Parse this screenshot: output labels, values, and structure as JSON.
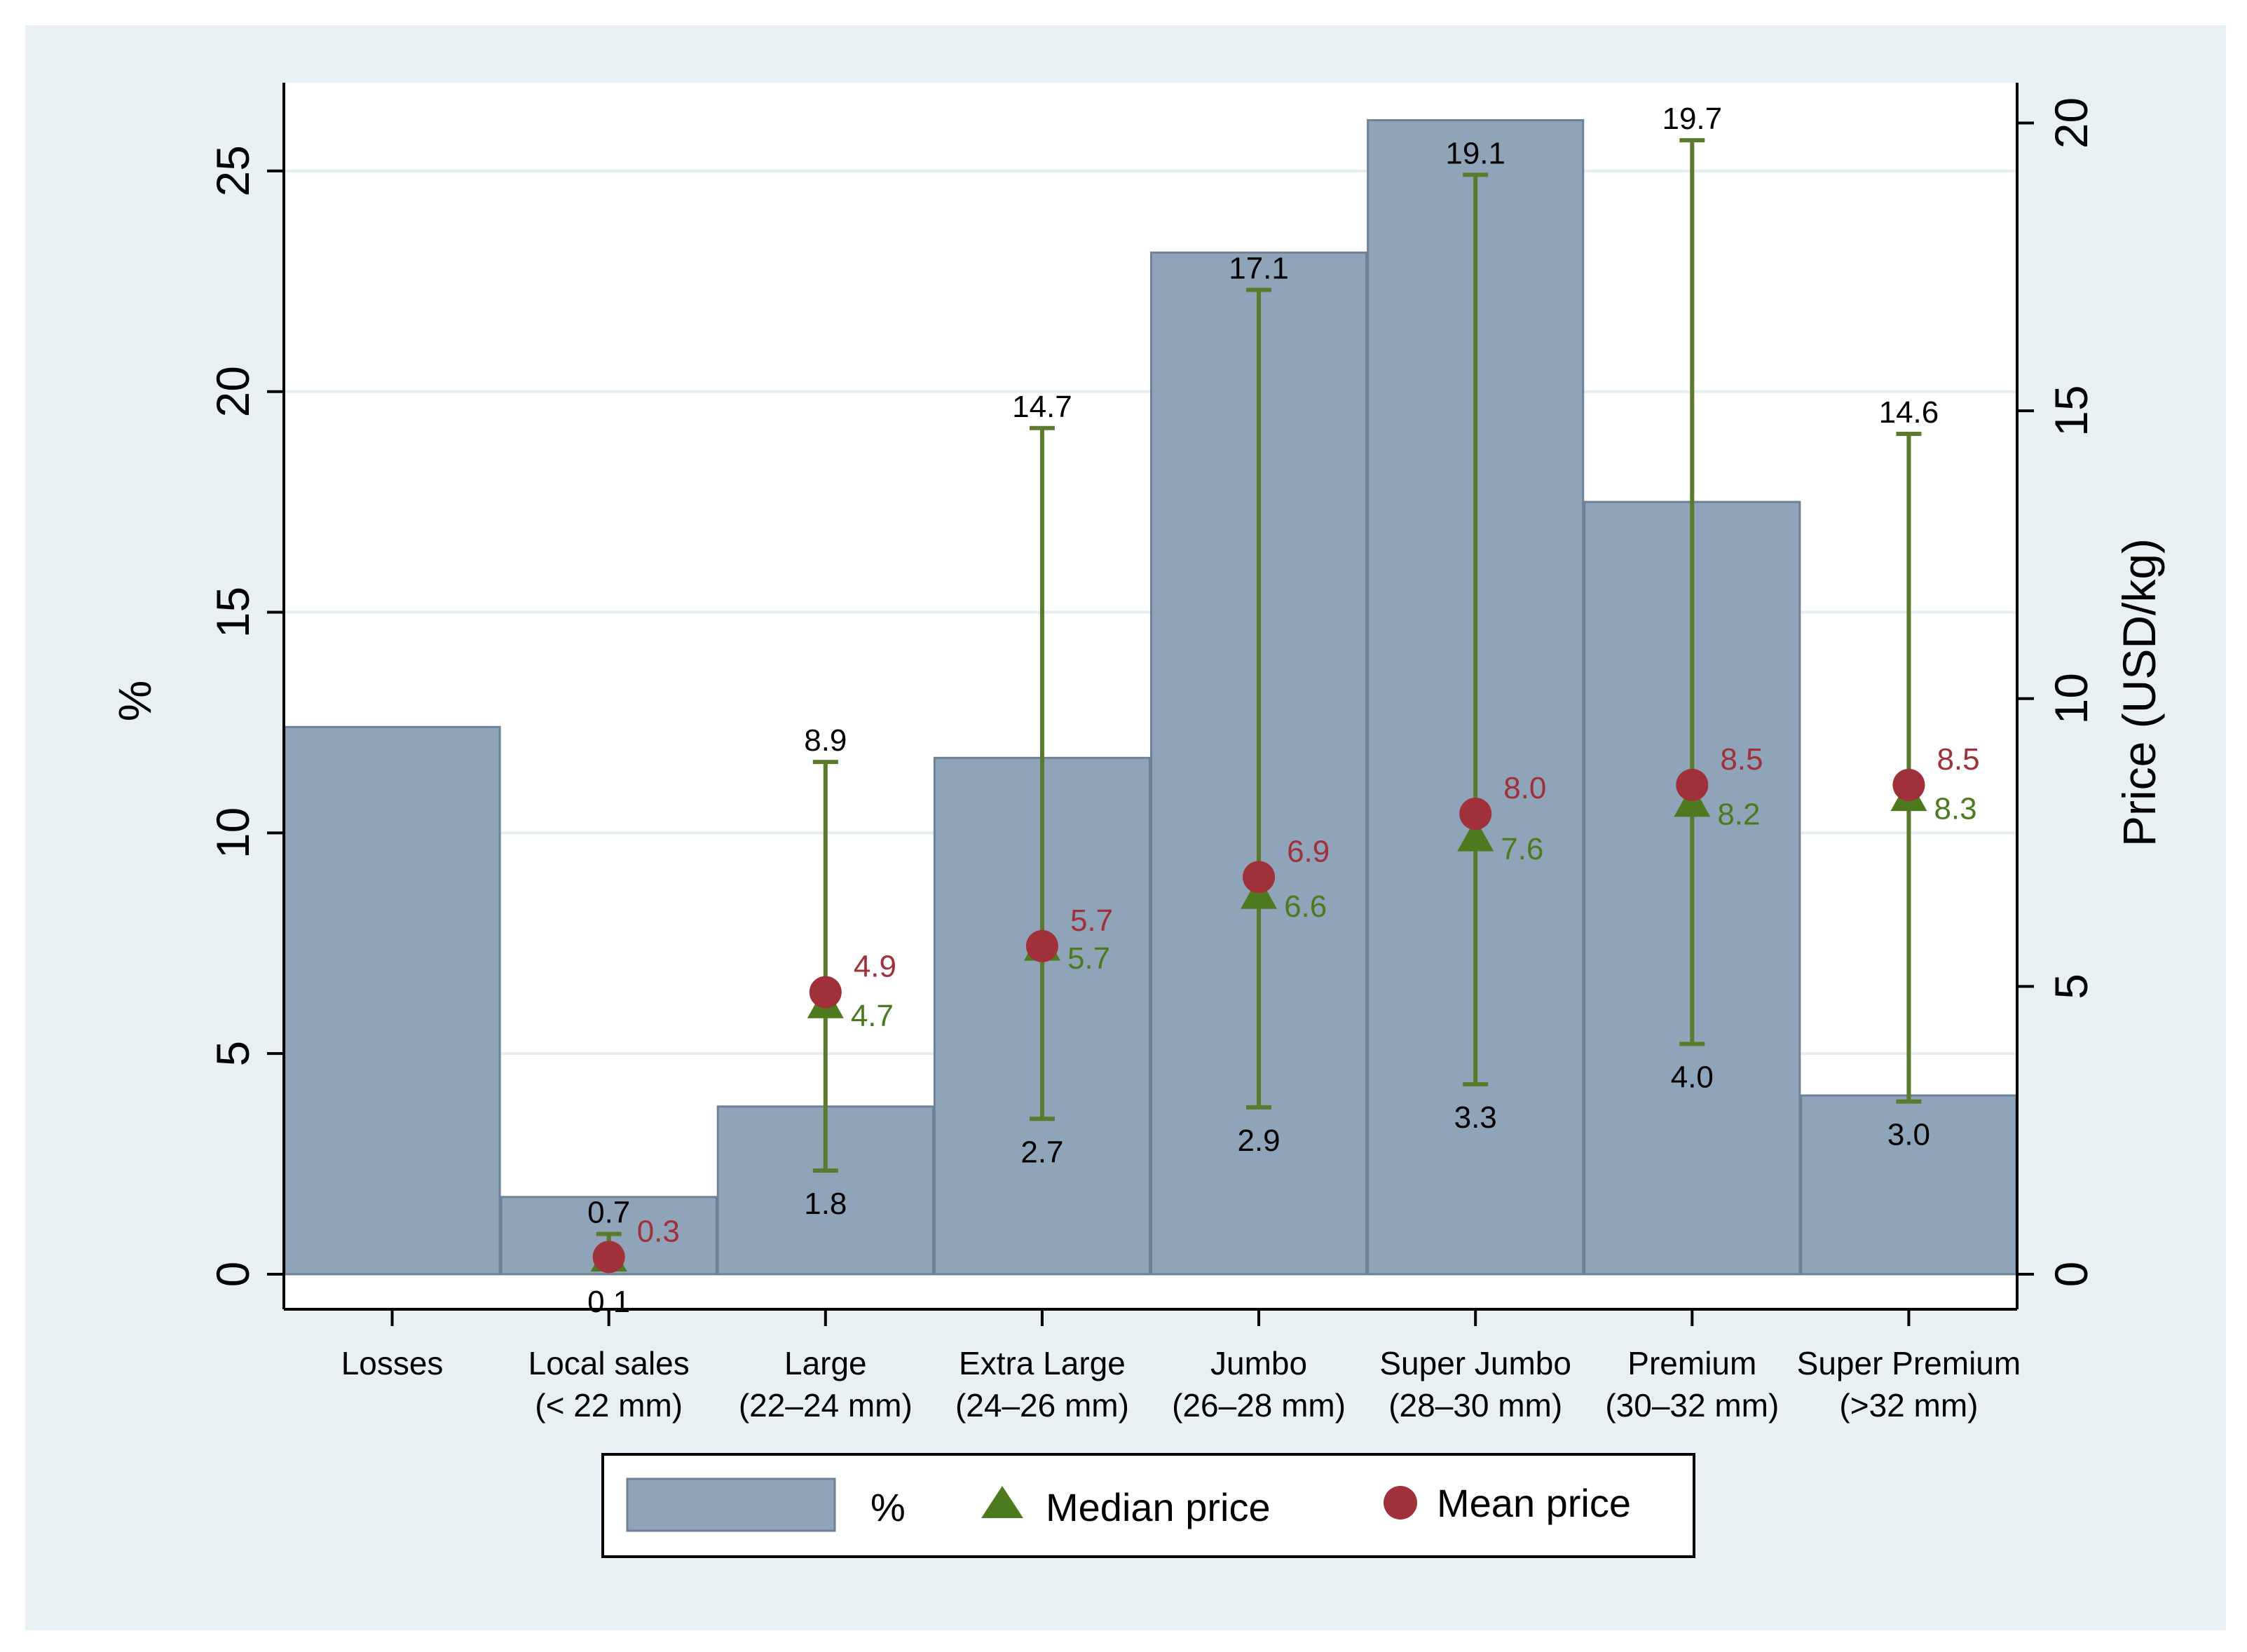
{
  "chart_data": {
    "type": "bar",
    "title": "",
    "categories": [
      [
        "Losses"
      ],
      [
        "Local sales",
        "(< 22 mm)"
      ],
      [
        "Large",
        "(22–24 mm)"
      ],
      [
        "Extra Large",
        "(24–26 mm)"
      ],
      [
        "Jumbo",
        "(26–28 mm)"
      ],
      [
        "Super Jumbo",
        "(28–30 mm)"
      ],
      [
        "Premium",
        "(30–32 mm)"
      ],
      [
        "Super Premium",
        "(>32 mm)"
      ]
    ],
    "ylabel": "%",
    "y2label": "Price (USD/kg)",
    "ylim": [
      0,
      27
    ],
    "y2lim": [
      0,
      20.7
    ],
    "yticks": [
      0,
      5,
      10,
      15,
      20,
      25
    ],
    "y2ticks": [
      0,
      5,
      10,
      15,
      20
    ],
    "grid": true,
    "series": [
      {
        "name": "%",
        "type": "bar",
        "axis": "left",
        "values": [
          12.4,
          1.75,
          3.8,
          11.7,
          23.15,
          26.15,
          17.5,
          4.05
        ]
      },
      {
        "name": "Median price",
        "type": "scatter",
        "marker": "triangle",
        "axis": "right",
        "values": [
          null,
          0.3,
          4.7,
          5.7,
          6.6,
          7.6,
          8.2,
          8.3
        ],
        "labels": [
          "",
          "",
          "4.7",
          "5.7",
          "6.6",
          "7.6",
          "8.2",
          "8.3"
        ]
      },
      {
        "name": "Mean price",
        "type": "scatter",
        "marker": "circle",
        "axis": "right",
        "values": [
          null,
          0.3,
          4.9,
          5.7,
          6.9,
          8.0,
          8.5,
          8.5
        ],
        "labels": [
          "",
          "0.3",
          "4.9",
          "5.7",
          "6.9",
          "8.0",
          "8.5",
          "8.5"
        ]
      },
      {
        "name": "Price range",
        "type": "range",
        "axis": "right",
        "low": [
          null,
          0.1,
          1.8,
          2.7,
          2.9,
          3.3,
          4.0,
          3.0
        ],
        "high": [
          null,
          0.7,
          8.9,
          14.7,
          17.1,
          19.1,
          19.7,
          14.6
        ],
        "low_labels": [
          "",
          "0.1",
          "1.8",
          "2.7",
          "2.9",
          "3.3",
          "4.0",
          "3.0"
        ],
        "high_labels": [
          "",
          "0.7",
          "8.9",
          "14.7",
          "17.1",
          "19.1",
          "19.7",
          "14.6"
        ]
      }
    ],
    "legend": {
      "position": "bottom-center",
      "items": [
        "%",
        "Median price",
        "Mean price"
      ]
    },
    "colors": {
      "bar_fill": "#8fa4b8",
      "bar_edge": "#6d8296",
      "median": "#4e7a1f",
      "mean": "#a0303a",
      "range_line": "#5a7a2e",
      "outer_bg": "#e9f0f3",
      "plot_bg": "#ffffff",
      "grid": "#e4edf1",
      "text": "#000000"
    }
  }
}
